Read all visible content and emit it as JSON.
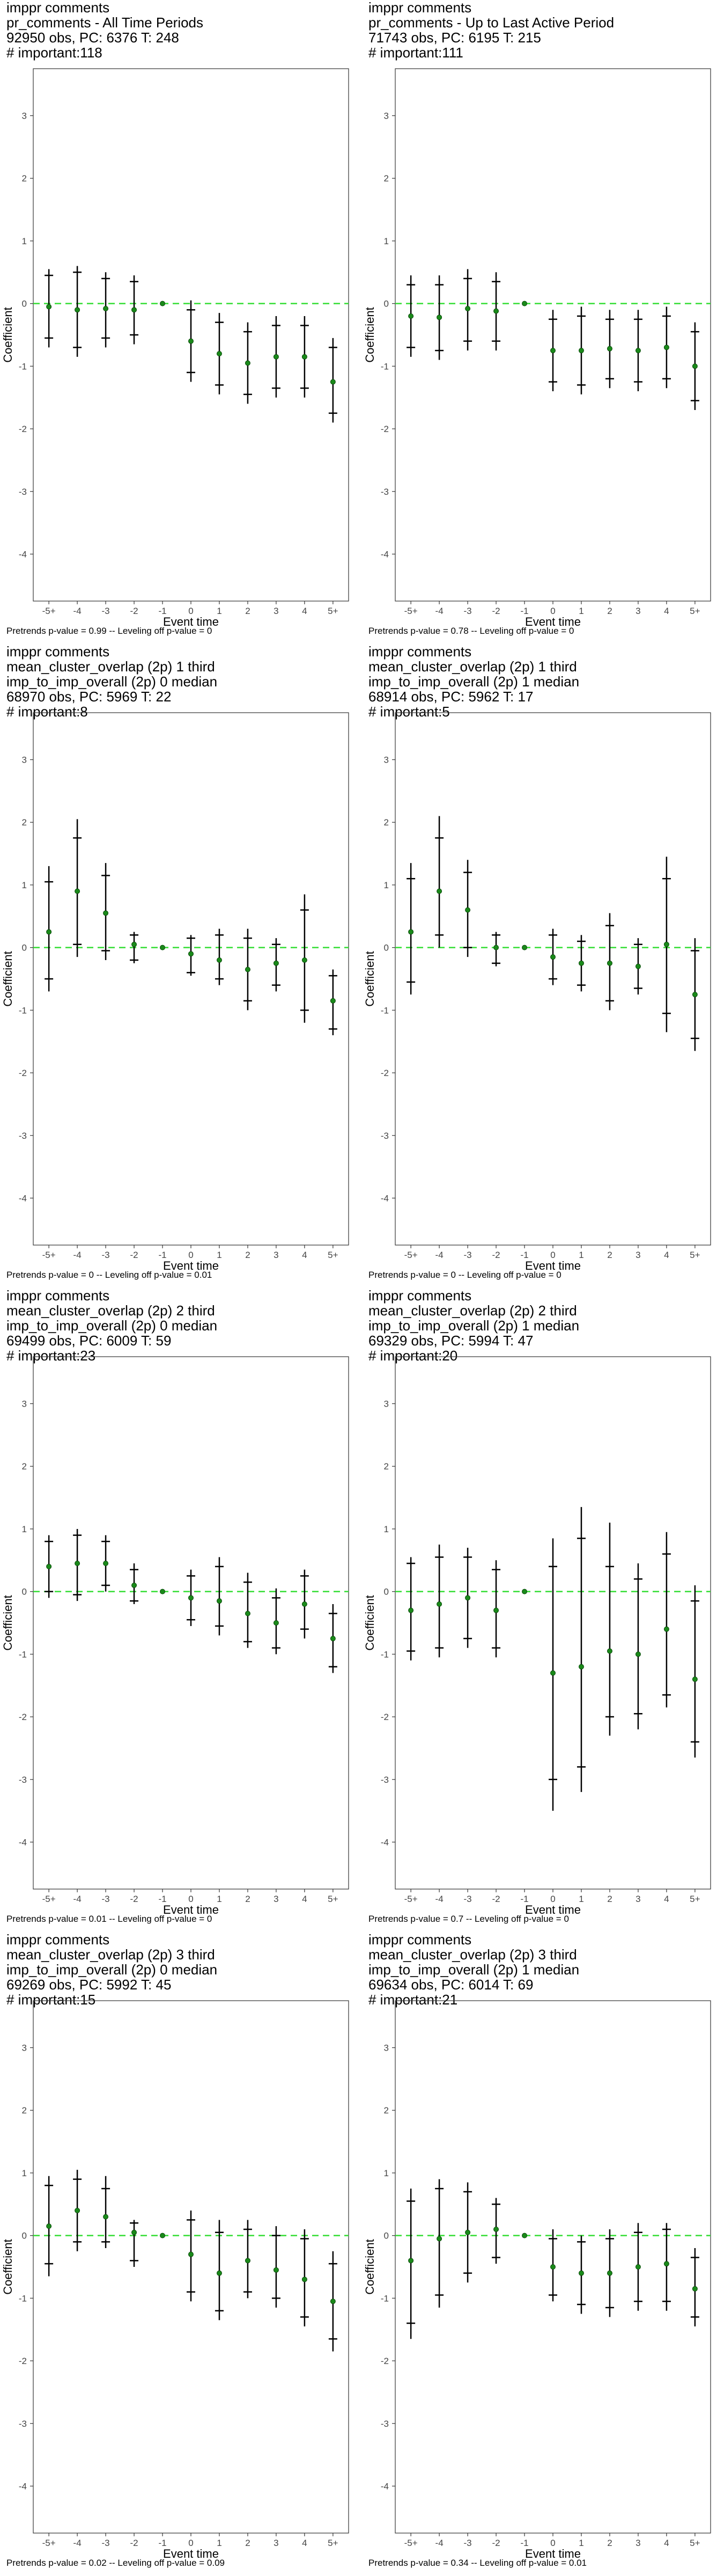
{
  "styles": {
    "point_color": "#1a8a1a",
    "ref_line_color": "#33dd33",
    "whisker_color": "#000000",
    "axis_color": "#333333"
  },
  "panels": [
    {
      "title": [
        " imppr comments",
        "pr_comments - All Time Periods",
        "92950 obs, PC: 6376 T: 248",
        "# important:118"
      ],
      "caption": "Pretrends p-value = 0.99 -- Leveling off p-value = 0"
    },
    {
      "title": [
        " imppr comments",
        "pr_comments - Up to Last Active Period",
        "71743 obs, PC: 6195 T: 215",
        "# important:111"
      ],
      "caption": "Pretrends p-value = 0.78 -- Leveling off p-value = 0"
    },
    {
      "title": [
        " imppr comments",
        "mean_cluster_overlap (2p) 1 third",
        "imp_to_imp_overall (2p) 0 median",
        "68970 obs, PC: 5969 T: 22",
        "# important:8"
      ],
      "caption": "Pretrends p-value = 0 -- Leveling off p-value = 0.01"
    },
    {
      "title": [
        " imppr comments",
        "mean_cluster_overlap (2p) 1 third",
        "imp_to_imp_overall (2p) 1 median",
        "68914 obs, PC: 5962 T: 17",
        "# important:5"
      ],
      "caption": "Pretrends p-value = 0 -- Leveling off p-value = 0"
    },
    {
      "title": [
        " imppr comments",
        "mean_cluster_overlap (2p) 2 third",
        "imp_to_imp_overall (2p) 0 median",
        "69499 obs, PC: 6009 T: 59",
        "# important:23"
      ],
      "caption": "Pretrends p-value = 0.01 -- Leveling off p-value = 0"
    },
    {
      "title": [
        " imppr comments",
        "mean_cluster_overlap (2p) 2 third",
        "imp_to_imp_overall (2p) 1 median",
        "69329 obs, PC: 5994 T: 47",
        "# important:20"
      ],
      "caption": "Pretrends p-value = 0.7 -- Leveling off p-value = 0"
    },
    {
      "title": [
        " imppr comments",
        "mean_cluster_overlap (2p) 3 third",
        "imp_to_imp_overall (2p) 0 median",
        "69269 obs, PC: 5992 T: 45",
        "# important:15"
      ],
      "caption": "Pretrends p-value = 0.02 -- Leveling off p-value = 0.09"
    },
    {
      "title": [
        " imppr comments",
        "mean_cluster_overlap (2p) 3 third",
        "imp_to_imp_overall (2p) 1 median",
        "69634 obs, PC: 6014 T: 69",
        "# important:21"
      ],
      "caption": "Pretrends p-value = 0.34 -- Leveling off p-value = 0.01"
    }
  ],
  "chart_data": [
    {
      "type": "scatter",
      "xlabel": "Event time",
      "ylabel": "Coefficient",
      "categories": [
        "-5+",
        "-4",
        "-3",
        "-2",
        "-1",
        "0",
        "1",
        "2",
        "3",
        "4",
        "5+"
      ],
      "ylim": [
        -4.75,
        3.75
      ],
      "yticks": [
        -4,
        -3,
        -2,
        -1,
        0,
        1,
        2,
        3
      ],
      "reference_line": 0,
      "estimate": [
        -0.05,
        -0.1,
        -0.08,
        -0.1,
        0,
        -0.6,
        -0.8,
        -0.95,
        -0.85,
        -0.85,
        -1.25
      ],
      "ci95_low": [
        -0.7,
        -0.85,
        -0.7,
        -0.65,
        0,
        -1.25,
        -1.45,
        -1.6,
        -1.5,
        -1.5,
        -1.9
      ],
      "ci95_high": [
        0.55,
        0.6,
        0.5,
        0.45,
        0,
        0.05,
        -0.15,
        -0.3,
        -0.2,
        -0.2,
        -0.55
      ],
      "ci90_low": [
        -0.55,
        -0.7,
        -0.55,
        -0.5,
        0,
        -1.1,
        -1.3,
        -1.45,
        -1.35,
        -1.35,
        -1.75
      ],
      "ci90_high": [
        0.45,
        0.5,
        0.4,
        0.35,
        0,
        -0.1,
        -0.3,
        -0.45,
        -0.35,
        -0.35,
        -0.7
      ]
    },
    {
      "type": "scatter",
      "xlabel": "Event time",
      "ylabel": "Coefficient",
      "categories": [
        "-5+",
        "-4",
        "-3",
        "-2",
        "-1",
        "0",
        "1",
        "2",
        "3",
        "4",
        "5+"
      ],
      "ylim": [
        -4.75,
        3.75
      ],
      "yticks": [
        -4,
        -3,
        -2,
        -1,
        0,
        1,
        2,
        3
      ],
      "reference_line": 0,
      "estimate": [
        -0.2,
        -0.22,
        -0.08,
        -0.12,
        0,
        -0.75,
        -0.75,
        -0.72,
        -0.75,
        -0.7,
        -1.0
      ],
      "ci95_low": [
        -0.85,
        -0.9,
        -0.75,
        -0.75,
        0,
        -1.4,
        -1.45,
        -1.35,
        -1.4,
        -1.35,
        -1.7
      ],
      "ci95_high": [
        0.45,
        0.45,
        0.55,
        0.5,
        0,
        -0.1,
        -0.05,
        -0.1,
        -0.1,
        -0.05,
        -0.3
      ],
      "ci90_low": [
        -0.7,
        -0.75,
        -0.6,
        -0.6,
        0,
        -1.25,
        -1.3,
        -1.2,
        -1.25,
        -1.2,
        -1.55
      ],
      "ci90_high": [
        0.3,
        0.3,
        0.4,
        0.35,
        0,
        -0.25,
        -0.2,
        -0.25,
        -0.25,
        -0.2,
        -0.45
      ]
    },
    {
      "type": "scatter",
      "xlabel": "Event time",
      "ylabel": "Coefficient",
      "categories": [
        "-5+",
        "-4",
        "-3",
        "-2",
        "-1",
        "0",
        "1",
        "2",
        "3",
        "4",
        "5+"
      ],
      "ylim": [
        -4.75,
        3.75
      ],
      "yticks": [
        -4,
        -3,
        -2,
        -1,
        0,
        1,
        2,
        3
      ],
      "reference_line": 0,
      "estimate": [
        0.25,
        0.9,
        0.55,
        0.05,
        0,
        -0.1,
        -0.2,
        -0.35,
        -0.25,
        -0.2,
        -0.85
      ],
      "ci95_low": [
        -0.7,
        -0.15,
        -0.2,
        -0.25,
        0,
        -0.45,
        -0.6,
        -1.0,
        -0.7,
        -1.2,
        -1.4
      ],
      "ci95_high": [
        1.3,
        2.05,
        1.35,
        0.25,
        0,
        0.2,
        0.3,
        0.3,
        0.15,
        0.85,
        -0.35
      ],
      "ci90_low": [
        -0.5,
        0.05,
        -0.05,
        -0.2,
        0,
        -0.4,
        -0.5,
        -0.85,
        -0.6,
        -1.0,
        -1.3
      ],
      "ci90_high": [
        1.05,
        1.75,
        1.15,
        0.2,
        0,
        0.15,
        0.2,
        0.15,
        0.05,
        0.6,
        -0.45
      ]
    },
    {
      "type": "scatter",
      "xlabel": "Event time",
      "ylabel": "Coefficient",
      "categories": [
        "-5+",
        "-4",
        "-3",
        "-2",
        "-1",
        "0",
        "1",
        "2",
        "3",
        "4",
        "5+"
      ],
      "ylim": [
        -4.75,
        3.75
      ],
      "yticks": [
        -4,
        -3,
        -2,
        -1,
        0,
        1,
        2,
        3
      ],
      "reference_line": 0,
      "estimate": [
        0.25,
        0.9,
        0.6,
        0.0,
        0,
        -0.15,
        -0.25,
        -0.25,
        -0.3,
        0.05,
        -0.75
      ],
      "ci95_low": [
        -0.75,
        0.0,
        -0.15,
        -0.3,
        0,
        -0.6,
        -0.7,
        -1.0,
        -0.75,
        -1.35,
        -1.65
      ],
      "ci95_high": [
        1.35,
        2.1,
        1.4,
        0.25,
        0,
        0.3,
        0.2,
        0.55,
        0.15,
        1.45,
        0.15
      ],
      "ci90_low": [
        -0.55,
        0.2,
        0.0,
        -0.25,
        0,
        -0.5,
        -0.6,
        -0.85,
        -0.65,
        -1.05,
        -1.45
      ],
      "ci90_high": [
        1.1,
        1.75,
        1.2,
        0.2,
        0,
        0.2,
        0.1,
        0.35,
        0.05,
        1.1,
        -0.05
      ]
    },
    {
      "type": "scatter",
      "xlabel": "Event time",
      "ylabel": "Coefficient",
      "categories": [
        "-5+",
        "-4",
        "-3",
        "-2",
        "-1",
        "0",
        "1",
        "2",
        "3",
        "4",
        "5+"
      ],
      "ylim": [
        -4.75,
        3.75
      ],
      "yticks": [
        -4,
        -3,
        -2,
        -1,
        0,
        1,
        2,
        3
      ],
      "reference_line": 0,
      "estimate": [
        0.4,
        0.45,
        0.45,
        0.1,
        0,
        -0.1,
        -0.15,
        -0.35,
        -0.5,
        -0.2,
        -0.75
      ],
      "ci95_low": [
        -0.1,
        -0.15,
        0.0,
        -0.2,
        0,
        -0.55,
        -0.7,
        -0.9,
        -1.0,
        -0.75,
        -1.3
      ],
      "ci95_high": [
        0.9,
        1.0,
        0.9,
        0.45,
        0,
        0.35,
        0.55,
        0.3,
        0.05,
        0.35,
        -0.2
      ],
      "ci90_low": [
        0.0,
        -0.05,
        0.1,
        -0.15,
        0,
        -0.45,
        -0.55,
        -0.8,
        -0.9,
        -0.6,
        -1.2
      ],
      "ci90_high": [
        0.8,
        0.9,
        0.8,
        0.35,
        0,
        0.25,
        0.4,
        0.15,
        -0.1,
        0.25,
        -0.35
      ]
    },
    {
      "type": "scatter",
      "xlabel": "Event time",
      "ylabel": "Coefficient",
      "categories": [
        "-5+",
        "-4",
        "-3",
        "-2",
        "-1",
        "0",
        "1",
        "2",
        "3",
        "4",
        "5+"
      ],
      "ylim": [
        -4.75,
        3.75
      ],
      "yticks": [
        -4,
        -3,
        -2,
        -1,
        0,
        1,
        2,
        3
      ],
      "reference_line": 0,
      "estimate": [
        -0.3,
        -0.2,
        -0.1,
        -0.3,
        0,
        -1.3,
        -1.2,
        -0.95,
        -1.0,
        -0.6,
        -1.4
      ],
      "ci95_low": [
        -1.1,
        -1.05,
        -0.9,
        -1.05,
        0,
        -3.5,
        -3.2,
        -2.3,
        -2.2,
        -1.85,
        -2.65
      ],
      "ci95_high": [
        0.55,
        0.75,
        0.7,
        0.5,
        0,
        0.85,
        1.35,
        1.1,
        0.45,
        0.95,
        0.1
      ],
      "ci90_low": [
        -0.95,
        -0.9,
        -0.75,
        -0.9,
        0,
        -3.0,
        -2.8,
        -2.0,
        -1.95,
        -1.65,
        -2.4
      ],
      "ci90_high": [
        0.45,
        0.55,
        0.55,
        0.35,
        0,
        0.4,
        0.85,
        0.4,
        0.2,
        0.6,
        -0.15
      ]
    },
    {
      "type": "scatter",
      "xlabel": "Event time",
      "ylabel": "Coefficient",
      "categories": [
        "-5+",
        "-4",
        "-3",
        "-2",
        "-1",
        "0",
        "1",
        "2",
        "3",
        "4",
        "5+"
      ],
      "ylim": [
        -4.75,
        3.75
      ],
      "yticks": [
        -4,
        -3,
        -2,
        -1,
        0,
        1,
        2,
        3
      ],
      "reference_line": 0,
      "estimate": [
        0.15,
        0.4,
        0.3,
        0.05,
        0,
        -0.3,
        -0.6,
        -0.4,
        -0.55,
        -0.7,
        -1.05
      ],
      "ci95_low": [
        -0.65,
        -0.25,
        -0.2,
        -0.5,
        0,
        -1.05,
        -1.35,
        -1.0,
        -1.15,
        -1.45,
        -1.85
      ],
      "ci95_high": [
        0.95,
        1.05,
        0.95,
        0.25,
        0,
        0.4,
        0.25,
        0.25,
        0.15,
        0.1,
        -0.25
      ],
      "ci90_low": [
        -0.45,
        -0.1,
        -0.1,
        -0.4,
        0,
        -0.9,
        -1.2,
        -0.9,
        -1.0,
        -1.3,
        -1.65
      ],
      "ci90_high": [
        0.8,
        0.9,
        0.75,
        0.2,
        0,
        0.25,
        0.05,
        0.1,
        0.0,
        -0.05,
        -0.45
      ]
    },
    {
      "type": "scatter",
      "xlabel": "Event time",
      "ylabel": "Coefficient",
      "categories": [
        "-5+",
        "-4",
        "-3",
        "-2",
        "-1",
        "0",
        "1",
        "2",
        "3",
        "4",
        "5+"
      ],
      "ylim": [
        -4.75,
        3.75
      ],
      "yticks": [
        -4,
        -3,
        -2,
        -1,
        0,
        1,
        2,
        3
      ],
      "reference_line": 0,
      "estimate": [
        -0.4,
        -0.05,
        0.05,
        0.1,
        0,
        -0.5,
        -0.6,
        -0.6,
        -0.5,
        -0.45,
        -0.85
      ],
      "ci95_low": [
        -1.65,
        -1.15,
        -0.75,
        -0.45,
        0,
        -1.05,
        -1.25,
        -1.3,
        -1.2,
        -1.2,
        -1.45
      ],
      "ci95_high": [
        0.75,
        0.9,
        0.85,
        0.6,
        0,
        0.1,
        0.0,
        0.1,
        0.2,
        0.2,
        -0.2
      ],
      "ci90_low": [
        -1.4,
        -0.95,
        -0.6,
        -0.35,
        0,
        -0.95,
        -1.1,
        -1.15,
        -1.05,
        -1.05,
        -1.3
      ],
      "ci90_high": [
        0.55,
        0.75,
        0.7,
        0.5,
        0,
        -0.05,
        -0.1,
        -0.05,
        0.05,
        0.1,
        -0.35
      ]
    }
  ]
}
